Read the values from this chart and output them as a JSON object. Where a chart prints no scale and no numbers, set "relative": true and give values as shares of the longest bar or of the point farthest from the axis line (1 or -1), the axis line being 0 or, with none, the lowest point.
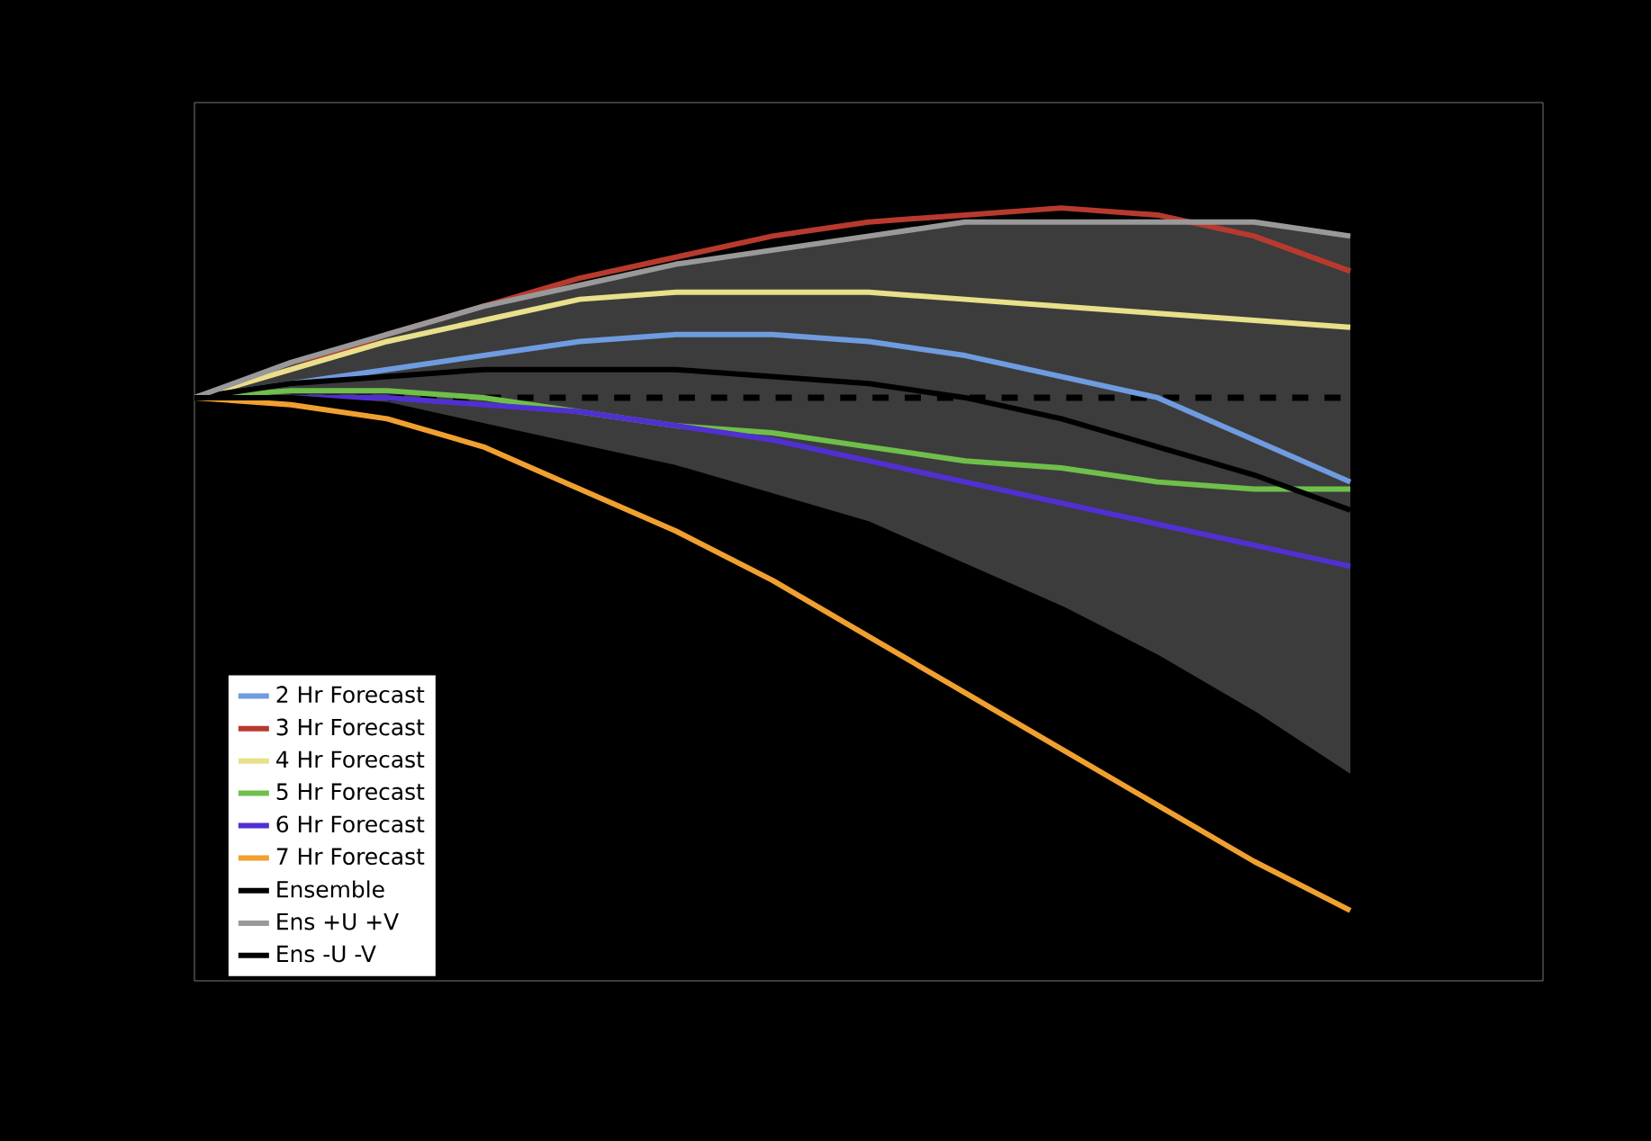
{
  "chart_data": {
    "type": "line",
    "relative": true,
    "categories": [
      null,
      null,
      null,
      null,
      null,
      null,
      null,
      null,
      null,
      null,
      null,
      null,
      null
    ],
    "legend": "bottom left",
    "series": [
      {
        "name": "2 Hr Forecast",
        "color": "#6f9be0",
        "values": [
          0.73,
          0.75,
          0.77,
          0.79,
          0.81,
          0.82,
          0.82,
          0.81,
          0.79,
          0.76,
          0.73,
          0.67,
          0.61
        ]
      },
      {
        "name": "3 Hr Forecast",
        "color": "#b83a2e",
        "values": [
          0.73,
          0.77,
          0.82,
          0.86,
          0.9,
          0.93,
          0.96,
          0.98,
          0.99,
          1.0,
          0.99,
          0.96,
          0.91
        ]
      },
      {
        "name": "4 Hr Forecast",
        "color": "#e8e08a",
        "values": [
          0.73,
          0.77,
          0.81,
          0.84,
          0.87,
          0.88,
          0.88,
          0.88,
          0.87,
          0.86,
          0.85,
          0.84,
          0.83
        ]
      },
      {
        "name": "5 Hr Forecast",
        "color": "#6fbf4a",
        "values": [
          0.73,
          0.74,
          0.74,
          0.73,
          0.71,
          0.69,
          0.68,
          0.66,
          0.64,
          0.63,
          0.61,
          0.6,
          0.6
        ]
      },
      {
        "name": "6 Hr Forecast",
        "color": "#5030d0",
        "values": [
          0.73,
          0.73,
          0.73,
          0.72,
          0.71,
          0.69,
          0.67,
          0.64,
          0.61,
          0.58,
          0.55,
          0.52,
          0.49
        ]
      },
      {
        "name": "7 Hr Forecast",
        "color": "#f0a030",
        "values": [
          0.73,
          0.72,
          0.7,
          0.66,
          0.6,
          0.54,
          0.47,
          0.39,
          0.31,
          0.23,
          0.15,
          0.07,
          0
        ]
      },
      {
        "name": "Ensemble",
        "color": "#000000",
        "values": [
          0.73,
          0.75,
          0.76,
          0.77,
          0.77,
          0.77,
          0.76,
          0.75,
          0.73,
          0.7,
          0.66,
          0.62,
          0.57
        ],
        "lower": [
          0.73,
          0.73,
          0.72,
          0.69,
          0.66,
          0.63,
          0.59,
          0.55,
          0.49,
          0.43,
          0.36,
          0.28,
          0.19
        ],
        "upper": [
          0.73,
          0.78,
          0.82,
          0.86,
          0.89,
          0.92,
          0.94,
          0.96,
          0.98,
          0.98,
          0.98,
          0.98,
          0.96
        ]
      },
      {
        "name": "Ens +U +V",
        "color": "#999999",
        "values": [
          0.73,
          0.78,
          0.82,
          0.86,
          0.89,
          0.92,
          0.94,
          0.96,
          0.98,
          0.98,
          0.98,
          0.98,
          0.96
        ]
      },
      {
        "name": "Ens -U -V",
        "color": "#000000",
        "values": [
          0.73,
          0.73,
          0.72,
          0.69,
          0.66,
          0.63,
          0.59,
          0.55,
          0.49,
          0.43,
          0.36,
          0.28,
          0.19
        ]
      }
    ],
    "ref_lines": [
      {
        "axis": "y",
        "value": 0.73,
        "color": "#000000",
        "line_style": "dashed"
      }
    ]
  }
}
